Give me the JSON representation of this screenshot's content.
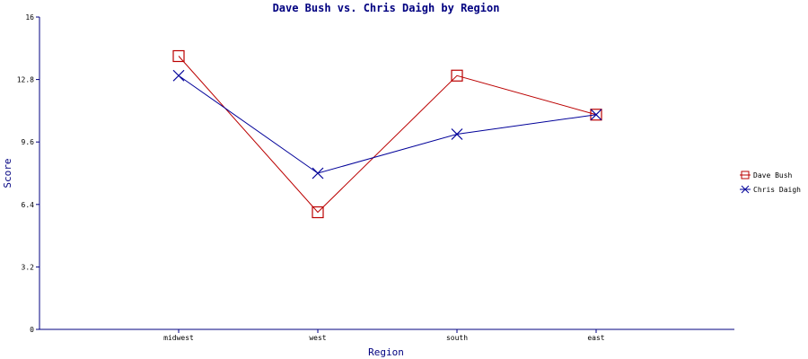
{
  "chart_data": {
    "type": "line",
    "title": "Dave Bush vs. Chris Daigh by Region",
    "xlabel": "Region",
    "ylabel": "Score",
    "categories": [
      "midwest",
      "west",
      "south",
      "east"
    ],
    "y_ticks": [
      "0",
      "3.2",
      "6.4",
      "9.6",
      "12.8",
      "16"
    ],
    "ylim": [
      0,
      16
    ],
    "grid": false,
    "legend_position": "right",
    "series": [
      {
        "name": "Dave Bush",
        "color": "#bb0000",
        "marker": "square",
        "values": [
          14.0,
          6.0,
          13.0,
          11.0
        ]
      },
      {
        "name": "Chris Daigh",
        "color": "#000099",
        "marker": "x",
        "values": [
          13.0,
          8.0,
          10.0,
          11.0
        ]
      }
    ]
  }
}
